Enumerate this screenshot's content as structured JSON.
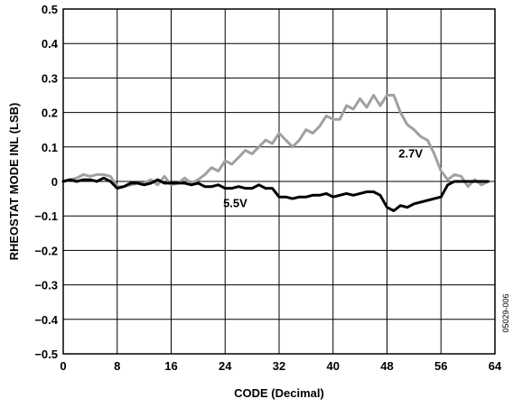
{
  "chart_data": {
    "type": "line",
    "title": "",
    "xlabel": "CODE (Decimal)",
    "ylabel": "RHEOSTAT MODE INL (LSB)",
    "xlim": [
      0,
      64
    ],
    "ylim": [
      -0.5,
      0.5
    ],
    "x_ticks": [
      0,
      8,
      16,
      24,
      32,
      40,
      48,
      56,
      64
    ],
    "x_tick_labels": [
      "0",
      "8",
      "16",
      "24",
      "32",
      "40",
      "48",
      "56",
      "64"
    ],
    "y_ticks": [
      -0.5,
      -0.4,
      -0.3,
      -0.2,
      -0.1,
      0,
      0.1,
      0.2,
      0.3,
      0.4,
      0.5
    ],
    "y_tick_labels": [
      "−0.5",
      "−0.4",
      "−0.3",
      "−0.2",
      "−0.1",
      "0",
      "0.1",
      "0.2",
      "0.3",
      "0.4",
      "0.5"
    ],
    "grid": true,
    "legend": "none",
    "figure_id": "05029-006",
    "series": [
      {
        "name": "2.7V",
        "color": "#a0a0a0",
        "x": [
          0,
          1,
          2,
          3,
          4,
          5,
          6,
          7,
          8,
          9,
          10,
          11,
          12,
          13,
          14,
          15,
          16,
          17,
          18,
          19,
          20,
          21,
          22,
          23,
          24,
          25,
          26,
          27,
          28,
          29,
          30,
          31,
          32,
          33,
          34,
          35,
          36,
          37,
          38,
          39,
          40,
          41,
          42,
          43,
          44,
          45,
          46,
          47,
          48,
          49,
          50,
          51,
          52,
          53,
          54,
          55,
          56,
          57,
          58,
          59,
          60,
          61,
          62,
          63
        ],
        "values": [
          0,
          0.005,
          0.01,
          0.02,
          0.015,
          0.02,
          0.02,
          0.015,
          -0.015,
          -0.015,
          -0.01,
          -0.005,
          -0.005,
          0.005,
          -0.01,
          0.015,
          -0.01,
          -0.005,
          0.01,
          -0.005,
          0.005,
          0.02,
          0.04,
          0.03,
          0.06,
          0.05,
          0.07,
          0.09,
          0.08,
          0.1,
          0.12,
          0.11,
          0.14,
          0.12,
          0.1,
          0.12,
          0.15,
          0.14,
          0.16,
          0.19,
          0.18,
          0.18,
          0.22,
          0.21,
          0.24,
          0.215,
          0.25,
          0.22,
          0.25,
          0.25,
          0.2,
          0.165,
          0.15,
          0.13,
          0.12,
          0.08,
          0.03,
          0.005,
          0.02,
          0.015,
          -0.015,
          0.005,
          -0.01,
          0
        ]
      },
      {
        "name": "5.5V",
        "color": "#000000",
        "x": [
          0,
          1,
          2,
          3,
          4,
          5,
          6,
          7,
          8,
          9,
          10,
          11,
          12,
          13,
          14,
          15,
          16,
          17,
          18,
          19,
          20,
          21,
          22,
          23,
          24,
          25,
          26,
          27,
          28,
          29,
          30,
          31,
          32,
          33,
          34,
          35,
          36,
          37,
          38,
          39,
          40,
          41,
          42,
          43,
          44,
          45,
          46,
          47,
          48,
          49,
          50,
          51,
          52,
          53,
          54,
          55,
          56,
          57,
          58,
          59,
          60,
          61,
          62,
          63
        ],
        "values": [
          0,
          0.005,
          0,
          0.005,
          0.005,
          0,
          0.01,
          0,
          -0.02,
          -0.015,
          -0.005,
          -0.005,
          -0.01,
          -0.005,
          0.005,
          -0.005,
          -0.005,
          -0.005,
          -0.005,
          -0.01,
          -0.005,
          -0.015,
          -0.015,
          -0.01,
          -0.02,
          -0.02,
          -0.015,
          -0.02,
          -0.02,
          -0.01,
          -0.02,
          -0.02,
          -0.045,
          -0.045,
          -0.05,
          -0.045,
          -0.045,
          -0.04,
          -0.04,
          -0.035,
          -0.045,
          -0.04,
          -0.035,
          -0.04,
          -0.035,
          -0.03,
          -0.03,
          -0.04,
          -0.075,
          -0.085,
          -0.07,
          -0.075,
          -0.065,
          -0.06,
          -0.055,
          -0.05,
          -0.045,
          -0.01,
          0,
          0,
          0,
          0,
          0,
          0
        ]
      }
    ],
    "annotations": [
      {
        "text": "2.7V",
        "x": 51.5,
        "y": 0.07
      },
      {
        "text": "5.5V",
        "x": 25.5,
        "y": -0.075
      }
    ]
  }
}
